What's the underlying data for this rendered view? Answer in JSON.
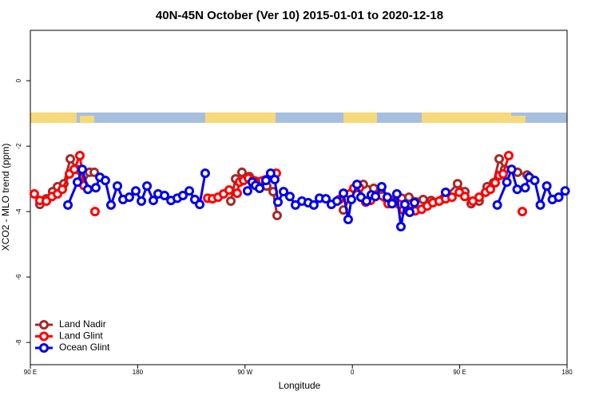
{
  "chart_data": {
    "type": "line",
    "title": "40N-45N October (Ver 10)   2015-01-01 to 2020-12-18",
    "x_label": "Longitude",
    "y_label": "XCO2 - MLO trend (ppm)",
    "xlim": [
      90,
      540
    ],
    "ylim": [
      -8.68,
      1.54
    ],
    "xticks": [
      {
        "value": 90,
        "label": "90 E"
      },
      180,
      {
        "value": 270,
        "label": "90 W"
      },
      {
        "value": 360,
        "label": "0"
      },
      {
        "value": 450,
        "label": "90 E"
      },
      {
        "value": 540,
        "label": "180"
      }
    ],
    "yticks": [
      0,
      -2,
      -4,
      -6,
      -8
    ],
    "legend": "bottom-left",
    "series": [
      {
        "name": "Land Nadir",
        "color": "#a52a2a",
        "x": [
          98.0,
          103.4,
          108.7,
          112.8,
          118.1,
          123.5,
          128.8,
          134.2,
          139.6,
          143.6,
          null,
          258.1,
          262.1,
          267.4,
          273.5,
          278.8,
          288.2,
          293.6,
          296.9,
          null,
          352.5,
          362.5,
          369.2,
          377.9,
          384.0,
          392.7,
          401.4,
          407.4,
          419.4,
          426.1,
          436.2,
          448.2,
          454.3,
          459.6,
          466.3,
          473.0,
          478.4,
          483.1,
          487.7,
          498.5,
          506.5
        ],
        "values": [
          -3.78,
          -3.61,
          -3.39,
          -3.24,
          -3.15,
          -2.39,
          -2.71,
          -3.15,
          -2.8,
          -2.8,
          null,
          -3.68,
          -3.0,
          -2.8,
          -2.93,
          -3.07,
          -3.22,
          -3.39,
          -4.12,
          null,
          -3.95,
          -3.27,
          -3.17,
          -3.29,
          -3.32,
          -3.66,
          -3.59,
          -3.56,
          -3.63,
          -3.66,
          -3.61,
          -3.15,
          -3.39,
          -3.76,
          -3.68,
          -3.24,
          -3.12,
          -2.39,
          -2.71,
          -2.8,
          -2.88
        ]
      },
      {
        "name": "Land Glint",
        "color": "#ff0000",
        "x": [
          93.3,
          98.0,
          103.4,
          108.1,
          112.8,
          116.8,
          122.8,
          126.8,
          131.5,
          134.9,
          null,
          144.2,
          null,
          238.7,
          242.7,
          247.4,
          252.0,
          256.7,
          263.4,
          265.4,
          268.8,
          272.8,
          276.8,
          292.2,
          296.2,
          null,
          349.1,
          357.8,
          361.2,
          365.9,
          371.2,
          375.2,
          379.3,
          390.0,
          392.7,
          399.4,
          402.7,
          407.4,
          412.7,
          418.1,
          422.8,
          427.5,
          432.8,
          438.2,
          443.5,
          449.6,
          454.3,
          461.0,
          466.3,
          471.7,
          475.7,
          479.7,
          483.1,
          486.4,
          491.1,
          null,
          502.5
        ],
        "values": [
          -3.46,
          -3.66,
          -3.68,
          -3.54,
          -3.46,
          -3.32,
          -2.85,
          -2.71,
          -2.29,
          -3.2,
          null,
          -4.0,
          null,
          -3.59,
          -3.61,
          -3.56,
          -3.46,
          -3.34,
          -3.44,
          -3.1,
          -3.05,
          -2.98,
          -3.05,
          -2.85,
          -2.83,
          null,
          -3.63,
          -3.46,
          -3.29,
          -3.27,
          -3.71,
          -3.66,
          -3.51,
          -3.76,
          -3.68,
          -3.78,
          -3.95,
          -3.98,
          -3.98,
          -3.93,
          -3.83,
          -3.73,
          -3.68,
          -3.61,
          -3.56,
          -3.41,
          -3.54,
          -3.68,
          -3.56,
          -3.41,
          -3.32,
          -3.12,
          -2.9,
          -2.85,
          -2.29,
          null,
          -4.0
        ]
      },
      {
        "name": "Ocean Glint",
        "color": "#0000ee",
        "x": [
          121.5,
          129.5,
          133.5,
          138.2,
          144.9,
          148.3,
          152.9,
          157.6,
          163.0,
          167.7,
          173.0,
          178.4,
          183.1,
          187.8,
          193.1,
          197.1,
          202.5,
          207.9,
          213.2,
          217.9,
          223.3,
          227.9,
          232.0,
          236.6,
          null,
          272.1,
          276.1,
          278.8,
          282.2,
          287.5,
          291.5,
          294.9,
          297.6,
          302.3,
          307.6,
          312.3,
          317.7,
          323.0,
          327.7,
          332.4,
          337.8,
          342.4,
          347.1,
          352.5,
          356.5,
          359.2,
          363.9,
          367.2,
          371.9,
          375.9,
          379.3,
          384.6,
          389.3,
          393.3,
          397.3,
          400.7,
          404.0,
          408.1,
          412.1,
          null,
          438.2,
          null,
          481.5,
          489.5,
          493.5,
          498.2,
          504.9,
          508.3,
          512.9,
          517.6,
          523.0,
          527.7,
          533.0,
          538.4
        ],
        "values": [
          -3.8,
          -3.1,
          -2.71,
          -3.32,
          -3.27,
          -2.95,
          -3.05,
          -3.8,
          -3.22,
          -3.63,
          -3.56,
          -3.37,
          -3.68,
          -3.22,
          -3.66,
          -3.46,
          -3.51,
          -3.66,
          -3.59,
          -3.51,
          -3.37,
          -3.63,
          -3.78,
          -2.83,
          null,
          -3.37,
          -3.1,
          -3.2,
          -3.29,
          -3.05,
          -2.83,
          -3.02,
          -3.71,
          -3.39,
          -3.54,
          -3.8,
          -3.68,
          -3.73,
          -3.8,
          -3.59,
          -3.61,
          -3.78,
          -3.68,
          -3.44,
          -4.24,
          -3.63,
          -3.17,
          -3.56,
          -3.68,
          -3.49,
          -3.54,
          -3.24,
          -3.56,
          -3.76,
          -3.46,
          -4.46,
          -3.78,
          -4.02,
          -3.73,
          null,
          -3.41,
          null,
          -3.8,
          -3.1,
          -2.71,
          -3.32,
          -3.27,
          -2.95,
          -3.05,
          -3.8,
          -3.22,
          -3.63,
          -3.56,
          -3.37
        ]
      }
    ]
  }
}
